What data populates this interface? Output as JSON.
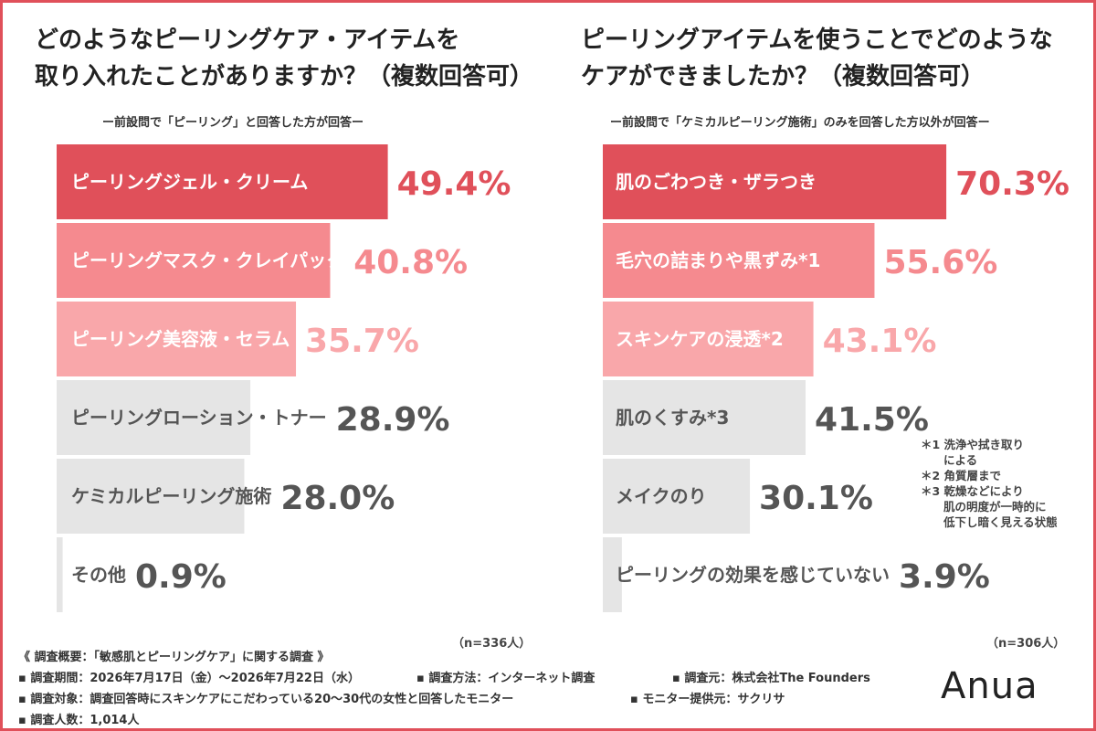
{
  "left_panel": {
    "title_line1": "どのようなピーリングケア・アイテムを",
    "title_line2": "取り入れたことがありますか？（複数回答可）",
    "subtitle": "ー前設問で「ピーリング」と回答した方が回答ー",
    "sample": "（n=336人）"
  },
  "right_panel": {
    "title_line1": "ピーリングアイテムを使うことでどのような",
    "title_line2": "ケアができましたか？（複数回答可）",
    "subtitle": "ー前設問で「ケミカルピーリング施術」のみを回答した方以外が回答ー",
    "sample": "（n=306人）"
  },
  "footnotes": [
    "＊1 洗浄や拭き取り",
    "　　による",
    "＊2 角質層まで",
    "＊3 乾燥などにより",
    "　　肌の明度が一時的に",
    "　　低下し暗く見える状態"
  ],
  "footer": {
    "overview": "《 調査概要：「敏感肌とピーリングケア」に関する調査 》",
    "period": "▪ 調査期間：2026年7月17日（金）〜2026年7月22日（水）",
    "method": "▪ 調査方法：インターネット調査",
    "source": "▪ 調査元：株式会社The Founders",
    "target": "▪ 調査対象：調査回答時にスキンケアにこだわっている20〜30代の女性と回答したモニター",
    "monitor": "▪ モニター提供元：サクリサ",
    "count": "▪ 調査人数：1,014人"
  },
  "logo": "Anua",
  "colors": {
    "frame": "#e0505a",
    "rank1": "#e0505a",
    "rank2": "#f58a8f",
    "rank3": "#f9a7aa",
    "other": "#e5e5e5",
    "value_highlight": "#e0505a",
    "value_other": "#555555"
  },
  "chart_data": [
    {
      "type": "bar",
      "orientation": "horizontal",
      "title": "どのようなピーリングケア・アイテムを取り入れたことがありますか？（複数回答可）",
      "categories": [
        "ピーリングジェル・クリーム",
        "ピーリングマスク・クレイパック",
        "ピーリング美容液・セラム",
        "ピーリングローション・トナー",
        "ケミカルピーリング施術",
        "その他"
      ],
      "values": [
        49.4,
        40.8,
        35.7,
        28.9,
        28.0,
        0.9
      ],
      "value_labels": [
        "49.4%",
        "40.8%",
        "35.7%",
        "28.9%",
        "28.0%",
        "0.9%"
      ],
      "unit": "%",
      "xlim": [
        0,
        100
      ],
      "grid": false
    },
    {
      "type": "bar",
      "orientation": "horizontal",
      "title": "ピーリングアイテムを使うことでどのようなケアができましたか？（複数回答可）",
      "categories": [
        "肌のごわつき・ザラつき",
        "毛穴の詰まりや黒ずみ*1",
        "スキンケアの浸透*2",
        "肌のくすみ*3",
        "メイクのり",
        "ピーリングの効果を感じていない"
      ],
      "values": [
        70.3,
        55.6,
        43.1,
        41.5,
        30.1,
        3.9
      ],
      "value_labels": [
        "70.3%",
        "55.6%",
        "43.1%",
        "41.5%",
        "30.1%",
        "3.9%"
      ],
      "unit": "%",
      "xlim": [
        0,
        100
      ],
      "grid": false
    }
  ]
}
